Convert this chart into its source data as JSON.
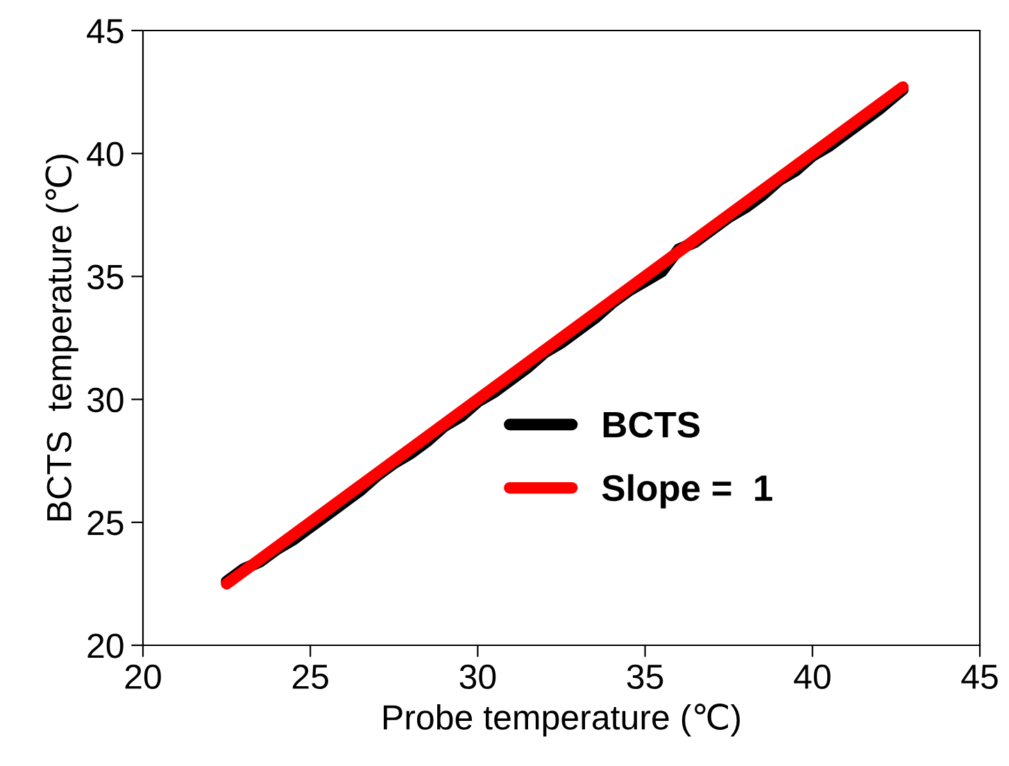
{
  "chart_data": {
    "type": "line",
    "xlabel": "Probe temperature (℃)",
    "ylabel": "BCTS  temperature (℃)",
    "series": [
      {
        "name": "BCTS",
        "color": "#000000",
        "x": [
          22.5,
          23.0,
          23.5,
          24.0,
          24.5,
          25.0,
          25.5,
          26.0,
          26.5,
          27.0,
          27.5,
          28.0,
          28.5,
          29.0,
          29.5,
          30.0,
          30.5,
          31.0,
          31.5,
          32.0,
          32.5,
          33.0,
          33.5,
          34.0,
          34.5,
          35.0,
          35.5,
          36.0,
          36.5,
          37.0,
          37.5,
          38.0,
          38.5,
          39.0,
          39.5,
          40.0,
          40.5,
          41.0,
          41.5,
          42.0,
          42.7
        ],
        "values": [
          22.6,
          23.1,
          23.4,
          23.9,
          24.3,
          24.8,
          25.3,
          25.8,
          26.3,
          26.9,
          27.4,
          27.8,
          28.3,
          28.9,
          29.3,
          29.9,
          30.3,
          30.8,
          31.3,
          31.9,
          32.3,
          32.8,
          33.3,
          33.9,
          34.4,
          34.8,
          35.2,
          36.1,
          36.4,
          36.9,
          37.4,
          37.8,
          38.3,
          38.9,
          39.3,
          39.9,
          40.3,
          40.8,
          41.3,
          41.8,
          42.6
        ]
      },
      {
        "name": "Slope =  1",
        "color": "#ff0000",
        "x": [
          22.5,
          42.7
        ],
        "values": [
          22.5,
          42.7
        ]
      }
    ],
    "xlim": [
      20,
      45
    ],
    "ylim": [
      20,
      45
    ],
    "xticks": [
      20,
      25,
      30,
      35,
      40,
      45
    ],
    "yticks": [
      20,
      25,
      30,
      35,
      40,
      45
    ],
    "grid": false,
    "legend": "bottom right",
    "line_style": "solid",
    "marker": "none"
  }
}
